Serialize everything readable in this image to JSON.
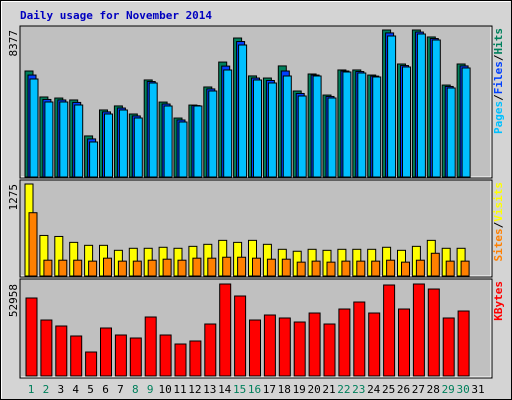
{
  "chart_data": [
    {
      "type": "bar",
      "title": "Daily usage for November 2014",
      "ylim": [
        0,
        8377
      ],
      "yticks": [
        8377
      ],
      "legend_separator": "/",
      "series": [
        {
          "name": "Hits",
          "color": "#00805c",
          "values": [
            6040,
            4560,
            4500,
            4390,
            2340,
            3820,
            4050,
            3590,
            5530,
            4270,
            3360,
            4100,
            5130,
            6550,
            7920,
            5760,
            5640,
            6330,
            4900,
            5870,
            4670,
            6100,
            6100,
            5810,
            8377,
            6440,
            8377,
            7980,
            5240,
            6440,
            0
          ]
        },
        {
          "name": "Files",
          "color": "#0040ff",
          "values": [
            5810,
            4420,
            4390,
            4250,
            2170,
            3710,
            3930,
            3480,
            5440,
            4160,
            3250,
            4070,
            5020,
            6320,
            7720,
            5640,
            5500,
            6040,
            4760,
            5810,
            4590,
            6040,
            6010,
            5750,
            8210,
            6350,
            8260,
            7890,
            5160,
            6330,
            0
          ]
        },
        {
          "name": "Pages",
          "color": "#00c0ff",
          "values": [
            5585,
            4274,
            4274,
            4103,
            1995,
            3590,
            3818,
            3362,
            5357,
            4046,
            3134,
            4046,
            4901,
            6098,
            7522,
            5528,
            5357,
            5756,
            4616,
            5756,
            4502,
            5984,
            5927,
            5699,
            8035,
            6269,
            8149,
            7807,
            5072,
            6212,
            0
          ]
        }
      ]
    },
    {
      "type": "bar",
      "ylim": [
        0,
        1275
      ],
      "yticks": [
        1275
      ],
      "series": [
        {
          "name": "Visits",
          "color": "#ffff00",
          "values": [
            1275,
            562,
            548,
            466,
            425,
            425,
            356,
            384,
            384,
            398,
            384,
            411,
            439,
            494,
            466,
            494,
            439,
            370,
            343,
            370,
            356,
            370,
            370,
            370,
            398,
            356,
            411,
            494,
            384,
            384,
            0
          ]
        },
        {
          "name": "Sites",
          "color": "#ff8000",
          "values": [
            877,
            219,
            219,
            219,
            206,
            247,
            206,
            206,
            219,
            233,
            219,
            247,
            247,
            260,
            260,
            247,
            233,
            233,
            192,
            206,
            192,
            206,
            206,
            206,
            219,
            192,
            219,
            315,
            206,
            206,
            0
          ]
        }
      ]
    },
    {
      "type": "bar",
      "ylim": [
        0,
        52958
      ],
      "yticks": [
        52958
      ],
      "categories": [
        "1",
        "2",
        "3",
        "4",
        "5",
        "6",
        "7",
        "8",
        "9",
        "10",
        "11",
        "12",
        "13",
        "14",
        "15",
        "16",
        "17",
        "18",
        "19",
        "20",
        "21",
        "22",
        "23",
        "24",
        "25",
        "26",
        "27",
        "28",
        "29",
        "30",
        "31"
      ],
      "category_colors": [
        "#00805c",
        "#00805c",
        "#000000",
        "#000000",
        "#000000",
        "#000000",
        "#000000",
        "#00805c",
        "#00805c",
        "#000000",
        "#000000",
        "#000000",
        "#000000",
        "#000000",
        "#00805c",
        "#00805c",
        "#000000",
        "#000000",
        "#000000",
        "#000000",
        "#000000",
        "#00805c",
        "#00805c",
        "#000000",
        "#000000",
        "#000000",
        "#000000",
        "#000000",
        "#00805c",
        "#00805c",
        "#000000"
      ],
      "series": [
        {
          "name": "KBytes",
          "color": "#ff0000",
          "values": [
            44900,
            32230,
            28780,
            23030,
            13810,
            27630,
            23600,
            21870,
            33960,
            23600,
            18420,
            20150,
            29930,
            52958,
            46050,
            32230,
            35110,
            33390,
            31080,
            36260,
            29930,
            38560,
            42590,
            36260,
            52380,
            38560,
            52958,
            50070,
            33390,
            37410,
            0
          ]
        }
      ]
    }
  ]
}
